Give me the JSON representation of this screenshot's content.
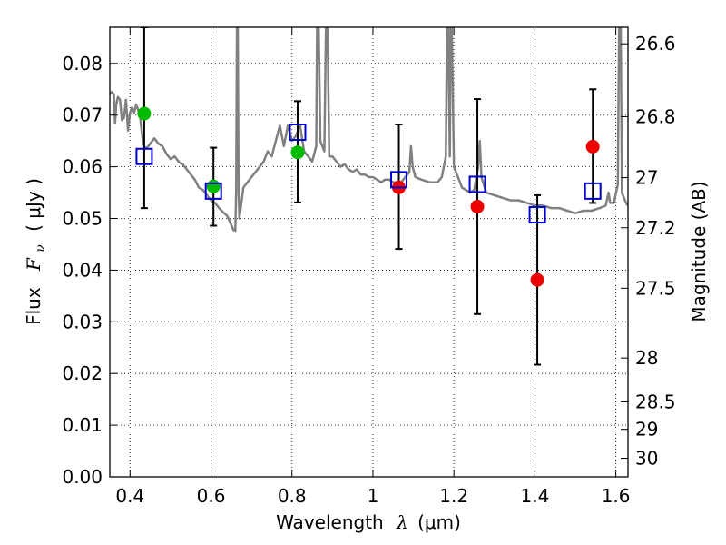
{
  "chart_data": {
    "type": "scatter",
    "xlabel_text": "Wavelength",
    "xlabel_symbol": "λ",
    "xlabel_unit": "(μm)",
    "ylabel_text": "Flux",
    "ylabel_symbol": "F",
    "ylabel_subscript": "ν",
    "ylabel_unit": "( μJy )",
    "y2label": "Magnitude (AB)",
    "xlim": [
      0.35,
      1.63
    ],
    "ylim": [
      0.0,
      0.087
    ],
    "grid": true,
    "x_ticks": [
      0.4,
      0.6,
      0.8,
      1.0,
      1.2,
      1.4,
      1.6
    ],
    "x_tick_labels": [
      "0.4",
      "0.6",
      "0.8",
      "1",
      "1.2",
      "1.4",
      "1.6"
    ],
    "y_ticks": [
      0.0,
      0.01,
      0.02,
      0.03,
      0.04,
      0.05,
      0.06,
      0.07,
      0.08
    ],
    "y_tick_labels": [
      "0.00",
      "0.01",
      "0.02",
      "0.03",
      "0.04",
      "0.05",
      "0.06",
      "0.07",
      "0.08"
    ],
    "y2_ticks": [
      {
        "label": "26.6",
        "flux": 0.0838
      },
      {
        "label": "26.8",
        "flux": 0.0697
      },
      {
        "label": "27",
        "flux": 0.0579
      },
      {
        "label": "27.2",
        "flux": 0.0482
      },
      {
        "label": "27.5",
        "flux": 0.0365
      },
      {
        "label": "28",
        "flux": 0.023
      },
      {
        "label": "28.5",
        "flux": 0.0145
      },
      {
        "label": "29",
        "flux": 0.0092
      },
      {
        "label": "30",
        "flux": 0.0036
      }
    ],
    "colors": {
      "model": "#808080",
      "green": "#00bb00",
      "red": "#ee0000",
      "model_box": "#0000cc",
      "errorbar": "#000000"
    },
    "series": [
      {
        "marker": "circle-green",
        "points": [
          {
            "x": 0.435,
            "y": 0.0703,
            "err_lo": 0.052,
            "err_hi": 0.087
          },
          {
            "x": 0.606,
            "y": 0.0562,
            "err_lo": 0.0486,
            "err_hi": 0.0637
          },
          {
            "x": 0.814,
            "y": 0.0628,
            "err_lo": 0.0531,
            "err_hi": 0.0727
          }
        ]
      },
      {
        "marker": "circle-red",
        "points": [
          {
            "x": 1.064,
            "y": 0.056,
            "err_lo": 0.0441,
            "err_hi": 0.0682
          },
          {
            "x": 1.258,
            "y": 0.0523,
            "err_lo": 0.0315,
            "err_hi": 0.0731
          },
          {
            "x": 1.406,
            "y": 0.0381,
            "err_lo": 0.0217,
            "err_hi": 0.0545
          },
          {
            "x": 1.543,
            "y": 0.0639,
            "err_lo": 0.053,
            "err_hi": 0.075
          }
        ]
      },
      {
        "marker": "square-blue",
        "points": [
          {
            "x": 0.435,
            "y": 0.062
          },
          {
            "x": 0.606,
            "y": 0.0553
          },
          {
            "x": 0.814,
            "y": 0.0667
          },
          {
            "x": 1.064,
            "y": 0.0575
          },
          {
            "x": 1.258,
            "y": 0.0566
          },
          {
            "x": 1.406,
            "y": 0.0507
          },
          {
            "x": 1.543,
            "y": 0.0553
          }
        ]
      }
    ],
    "model_spectrum": [
      [
        0.35,
        0.074
      ],
      [
        0.355,
        0.0745
      ],
      [
        0.36,
        0.074
      ],
      [
        0.363,
        0.0685
      ],
      [
        0.366,
        0.072
      ],
      [
        0.37,
        0.0735
      ],
      [
        0.375,
        0.073
      ],
      [
        0.38,
        0.069
      ],
      [
        0.385,
        0.0695
      ],
      [
        0.39,
        0.073
      ],
      [
        0.395,
        0.067
      ],
      [
        0.4,
        0.0705
      ],
      [
        0.405,
        0.0715
      ],
      [
        0.41,
        0.0705
      ],
      [
        0.415,
        0.072
      ],
      [
        0.42,
        0.071
      ],
      [
        0.425,
        0.0695
      ],
      [
        0.43,
        0.066
      ],
      [
        0.435,
        0.064
      ],
      [
        0.44,
        0.0635
      ],
      [
        0.45,
        0.0645
      ],
      [
        0.46,
        0.0655
      ],
      [
        0.47,
        0.0645
      ],
      [
        0.48,
        0.064
      ],
      [
        0.49,
        0.0625
      ],
      [
        0.5,
        0.0615
      ],
      [
        0.51,
        0.062
      ],
      [
        0.52,
        0.061
      ],
      [
        0.53,
        0.0605
      ],
      [
        0.54,
        0.0595
      ],
      [
        0.55,
        0.0585
      ],
      [
        0.56,
        0.0575
      ],
      [
        0.57,
        0.056
      ],
      [
        0.58,
        0.0555
      ],
      [
        0.59,
        0.0545
      ],
      [
        0.6,
        0.0535
      ],
      [
        0.61,
        0.053
      ],
      [
        0.62,
        0.052
      ],
      [
        0.63,
        0.0512
      ],
      [
        0.64,
        0.0505
      ],
      [
        0.65,
        0.0488
      ],
      [
        0.655,
        0.0478
      ],
      [
        0.66,
        0.0476
      ],
      [
        0.662,
        0.055
      ],
      [
        0.664,
        0.087
      ],
      [
        0.666,
        0.087
      ],
      [
        0.668,
        0.055
      ],
      [
        0.67,
        0.05
      ],
      [
        0.68,
        0.056
      ],
      [
        0.69,
        0.057
      ],
      [
        0.7,
        0.058
      ],
      [
        0.71,
        0.059
      ],
      [
        0.72,
        0.06
      ],
      [
        0.73,
        0.061
      ],
      [
        0.74,
        0.063
      ],
      [
        0.75,
        0.062
      ],
      [
        0.76,
        0.065
      ],
      [
        0.77,
        0.068
      ],
      [
        0.78,
        0.064
      ],
      [
        0.79,
        0.068
      ],
      [
        0.8,
        0.065
      ],
      [
        0.81,
        0.066
      ],
      [
        0.82,
        0.068
      ],
      [
        0.83,
        0.063
      ],
      [
        0.84,
        0.062
      ],
      [
        0.85,
        0.061
      ],
      [
        0.86,
        0.064
      ],
      [
        0.862,
        0.087
      ],
      [
        0.866,
        0.087
      ],
      [
        0.87,
        0.065
      ],
      [
        0.88,
        0.063
      ],
      [
        0.884,
        0.087
      ],
      [
        0.888,
        0.087
      ],
      [
        0.892,
        0.062
      ],
      [
        0.9,
        0.062
      ],
      [
        0.91,
        0.061
      ],
      [
        0.92,
        0.06
      ],
      [
        0.93,
        0.0605
      ],
      [
        0.94,
        0.0595
      ],
      [
        0.95,
        0.059
      ],
      [
        0.96,
        0.0595
      ],
      [
        0.97,
        0.0585
      ],
      [
        0.98,
        0.0585
      ],
      [
        0.99,
        0.058
      ],
      [
        1.0,
        0.058
      ],
      [
        1.01,
        0.0575
      ],
      [
        1.02,
        0.057
      ],
      [
        1.03,
        0.0575
      ],
      [
        1.04,
        0.0575
      ],
      [
        1.05,
        0.057
      ],
      [
        1.06,
        0.057
      ],
      [
        1.07,
        0.057
      ],
      [
        1.08,
        0.058
      ],
      [
        1.09,
        0.059
      ],
      [
        1.094,
        0.064
      ],
      [
        1.098,
        0.06
      ],
      [
        1.105,
        0.058
      ],
      [
        1.12,
        0.0575
      ],
      [
        1.14,
        0.057
      ],
      [
        1.16,
        0.057
      ],
      [
        1.17,
        0.058
      ],
      [
        1.18,
        0.062
      ],
      [
        1.183,
        0.087
      ],
      [
        1.186,
        0.087
      ],
      [
        1.19,
        0.062
      ],
      [
        1.192,
        0.087
      ],
      [
        1.195,
        0.087
      ],
      [
        1.2,
        0.06
      ],
      [
        1.22,
        0.056
      ],
      [
        1.24,
        0.055
      ],
      [
        1.25,
        0.0555
      ],
      [
        1.26,
        0.06
      ],
      [
        1.264,
        0.065
      ],
      [
        1.268,
        0.058
      ],
      [
        1.28,
        0.055
      ],
      [
        1.3,
        0.0545
      ],
      [
        1.32,
        0.054
      ],
      [
        1.34,
        0.0535
      ],
      [
        1.36,
        0.0535
      ],
      [
        1.38,
        0.053
      ],
      [
        1.4,
        0.0525
      ],
      [
        1.42,
        0.0525
      ],
      [
        1.44,
        0.052
      ],
      [
        1.46,
        0.052
      ],
      [
        1.48,
        0.0515
      ],
      [
        1.5,
        0.051
      ],
      [
        1.52,
        0.0515
      ],
      [
        1.54,
        0.0515
      ],
      [
        1.56,
        0.052
      ],
      [
        1.575,
        0.0525
      ],
      [
        1.582,
        0.055
      ],
      [
        1.586,
        0.053
      ],
      [
        1.595,
        0.053
      ],
      [
        1.605,
        0.0565
      ],
      [
        1.608,
        0.087
      ],
      [
        1.612,
        0.087
      ],
      [
        1.615,
        0.055
      ],
      [
        1.625,
        0.053
      ],
      [
        1.63,
        0.0525
      ]
    ]
  }
}
